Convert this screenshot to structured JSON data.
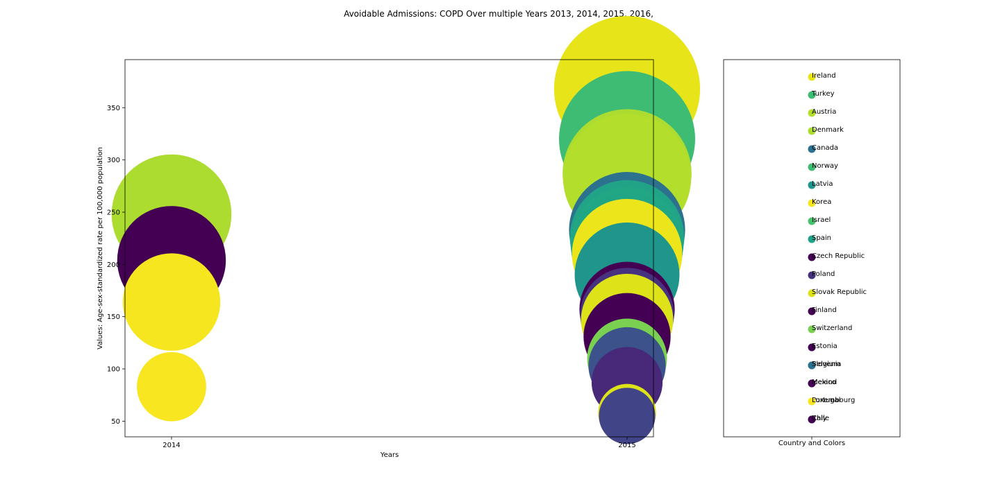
{
  "chart_data": {
    "type": "scatter",
    "title": "Avoidable Admissions: COPD Over multiple Years 2013, 2014, 2015, 2016,",
    "xlabel": "Years",
    "ylabel": "Values: Age-sex-standardized rate per 100,000 population",
    "x_ticks": [
      "2014",
      "2015"
    ],
    "y_ticks": [
      50,
      100,
      150,
      200,
      250,
      300,
      350
    ],
    "ylim": [
      35,
      396
    ],
    "grid": false,
    "legend_xlabel": "Country and Colors",
    "points": [
      {
        "x": "2014",
        "y": 248,
        "color": "#addc30"
      },
      {
        "x": "2014",
        "y": 204,
        "color": "#440154"
      },
      {
        "x": "2014",
        "y": 164,
        "color": "#f5e61f"
      },
      {
        "x": "2014",
        "y": 83,
        "color": "#f8e621"
      },
      {
        "x": "2015",
        "y": 368,
        "color": "#e7e419"
      },
      {
        "x": "2015",
        "y": 320,
        "color": "#3fbc73"
      },
      {
        "x": "2015",
        "y": 287,
        "color": "#addc30"
      },
      {
        "x": "2015",
        "y": 283,
        "color": "#b4de2c"
      },
      {
        "x": "2015",
        "y": 215,
        "color": "#21a685"
      },
      {
        "x": "2015",
        "y": 210,
        "color": "#ece51b"
      },
      {
        "x": "2015",
        "y": 220,
        "color": "#22a785"
      },
      {
        "x": "2015",
        "y": 226,
        "color": "#20a386"
      },
      {
        "x": "2015",
        "y": 233,
        "color": "#2c728e"
      },
      {
        "x": "2015",
        "y": 190,
        "color": "#1f958b"
      },
      {
        "x": "2015",
        "y": 147,
        "color": "#dde318"
      },
      {
        "x": "2015",
        "y": 152,
        "color": "#46327e"
      },
      {
        "x": "2015",
        "y": 157,
        "color": "#440154"
      },
      {
        "x": "2015",
        "y": 131,
        "color": "#440154"
      },
      {
        "x": "2015",
        "y": 103,
        "color": "#3b528b"
      },
      {
        "x": "2015",
        "y": 110,
        "color": "#7ad151"
      },
      {
        "x": "2015",
        "y": 87,
        "color": "#482878"
      },
      {
        "x": "2015",
        "y": 55,
        "color": "#414487"
      },
      {
        "x": "2015",
        "y": 58,
        "color": "#dde318"
      }
    ],
    "legend": [
      {
        "label": "Ireland",
        "color": "#e7e419"
      },
      {
        "label": "Turkey",
        "color": "#3fbc73"
      },
      {
        "label": "Austria",
        "color": "#b4de2c"
      },
      {
        "label": "Denmark",
        "color": "#addc30"
      },
      {
        "label": "Canada",
        "color": "#2c728e"
      },
      {
        "label": "Norway",
        "color": "#3fbc73"
      },
      {
        "label": "Latvia",
        "color": "#1f958b"
      },
      {
        "label": "Korea",
        "color": "#f5e61f"
      },
      {
        "label": "Israel",
        "color": "#4ac16d"
      },
      {
        "label": "Spain",
        "color": "#20a386"
      },
      {
        "label": "Czech Republic",
        "color": "#440154"
      },
      {
        "label": "Poland",
        "color": "#46327e"
      },
      {
        "label": "Slovak Republic",
        "color": "#dde318"
      },
      {
        "label": "Finland",
        "color": "#440154"
      },
      {
        "label": "Switzerland",
        "color": "#7ad151"
      },
      {
        "label": "Estonia",
        "color": "#440154"
      },
      {
        "label": "Belgium",
        "color": "#3b528b"
      },
      {
        "label": "Slovenia",
        "color": "#2c728e"
      },
      {
        "label": "Mexico",
        "color": "#482878"
      },
      {
        "label": "Iceland",
        "color": "#440154"
      },
      {
        "label": "Portugal",
        "color": "#dde318"
      },
      {
        "label": "Luxembourg",
        "color": "#f8e621"
      },
      {
        "label": "Italy",
        "color": "#414487"
      },
      {
        "label": "Chile",
        "color": "#440154"
      }
    ]
  }
}
